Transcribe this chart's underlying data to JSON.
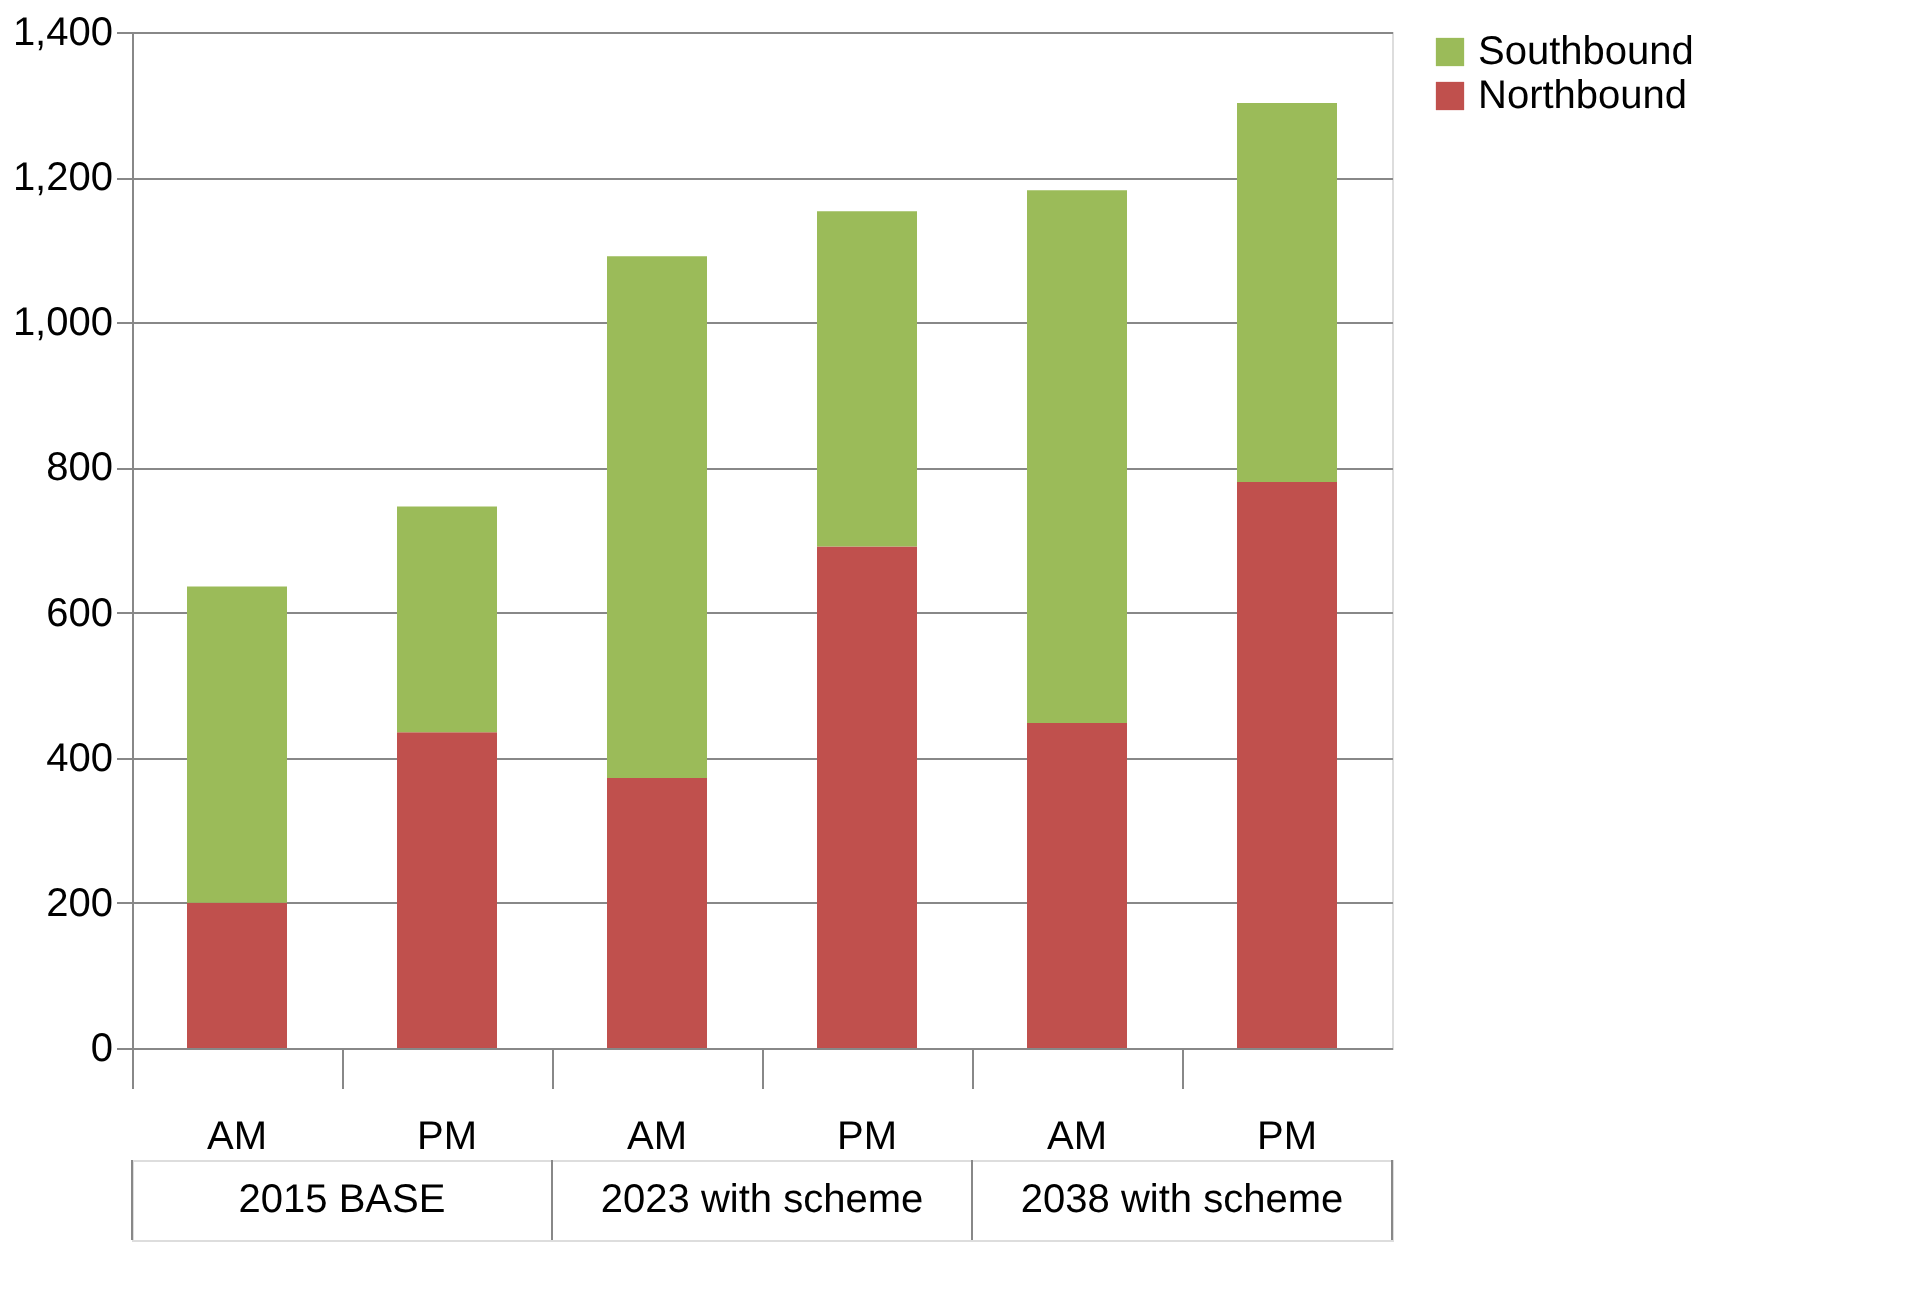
{
  "chart_data": {
    "type": "bar",
    "stacked": true,
    "categories": [
      "AM",
      "PM",
      "AM",
      "PM",
      "AM",
      "PM"
    ],
    "series": [
      {
        "name": "Northbound",
        "color": "#c0504d",
        "values": [
          200,
          435,
          372,
          691,
          448,
          780
        ]
      },
      {
        "name": "Southbound",
        "color": "#9bbb59",
        "values": [
          436,
          311,
          719,
          462,
          734,
          522
        ]
      }
    ],
    "annotations": [
      "2015 BASE",
      "2023 with scheme",
      "2038 with scheme"
    ],
    "ylim": [
      0,
      1400
    ],
    "yticks": [
      0,
      200,
      400,
      600,
      800,
      {
        "value": 1000,
        "label": "1,000"
      },
      {
        "value": 1200,
        "label": "1,200"
      },
      {
        "value": 1400,
        "label": "1,400"
      }
    ],
    "grid": "y",
    "legend": "right"
  }
}
